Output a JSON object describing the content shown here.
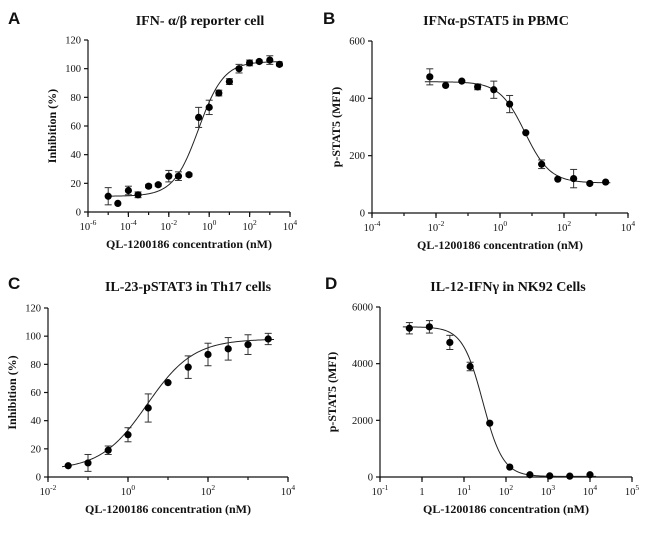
{
  "figure": {
    "background": "#ffffff",
    "marker_color": "#000000",
    "line_color": "#222222"
  },
  "chart_data": [
    {
      "id": "A",
      "letter": "A",
      "type": "scatter",
      "title": "IFN- α/β reporter cell",
      "xlabel": "QL-1200186 concentration (nM)",
      "ylabel": "Inhibition (%)",
      "x_scale": "log10",
      "xlim": [
        1e-06,
        10000.0
      ],
      "x_ticks": [
        1e-06,
        0.0001,
        0.01,
        1,
        100,
        10000
      ],
      "x_tick_labels": [
        {
          "base": "10",
          "exp": "-6"
        },
        {
          "base": "10",
          "exp": "-4"
        },
        {
          "base": "10",
          "exp": "-2"
        },
        {
          "base": "10",
          "exp": "0"
        },
        {
          "base": "10",
          "exp": "2"
        },
        {
          "base": "10",
          "exp": "4"
        }
      ],
      "ylim": [
        0,
        120
      ],
      "y_ticks": [
        0,
        20,
        40,
        60,
        80,
        100,
        120
      ],
      "points": [
        {
          "x": 1e-05,
          "y": 11,
          "err": 6
        },
        {
          "x": 3e-05,
          "y": 6,
          "err": 0
        },
        {
          "x": 0.0001,
          "y": 15,
          "err": 3
        },
        {
          "x": 0.0003,
          "y": 12,
          "err": 2
        },
        {
          "x": 0.001,
          "y": 18,
          "err": 1
        },
        {
          "x": 0.003,
          "y": 19,
          "err": 1
        },
        {
          "x": 0.01,
          "y": 25,
          "err": 4
        },
        {
          "x": 0.03,
          "y": 25,
          "err": 3
        },
        {
          "x": 0.1,
          "y": 26,
          "err": 1
        },
        {
          "x": 0.3,
          "y": 66,
          "err": 7
        },
        {
          "x": 1,
          "y": 73,
          "err": 5
        },
        {
          "x": 3,
          "y": 83,
          "err": 2
        },
        {
          "x": 10,
          "y": 91,
          "err": 2
        },
        {
          "x": 30,
          "y": 100,
          "err": 3
        },
        {
          "x": 100,
          "y": 104,
          "err": 2
        },
        {
          "x": 300,
          "y": 105,
          "err": 1
        },
        {
          "x": 1000,
          "y": 106,
          "err": 3
        },
        {
          "x": 3000,
          "y": 103,
          "err": 1
        }
      ],
      "fit": {
        "bottom": 11,
        "top": 105,
        "ec50": 0.3,
        "hill": 0.7
      }
    },
    {
      "id": "B",
      "letter": "B",
      "type": "scatter",
      "title": "IFNα-pSTAT5 in PBMC",
      "xlabel": "QL-1200186 concentration (nM)",
      "ylabel": "p-STAT5 (MFI)",
      "x_scale": "log10",
      "xlim": [
        0.0001,
        10000.0
      ],
      "x_ticks": [
        0.0001,
        0.01,
        1,
        100,
        10000
      ],
      "x_tick_labels": [
        {
          "base": "10",
          "exp": "-4"
        },
        {
          "base": "10",
          "exp": "-2"
        },
        {
          "base": "10",
          "exp": "0"
        },
        {
          "base": "10",
          "exp": "2"
        },
        {
          "base": "10",
          "exp": "4"
        }
      ],
      "ylim": [
        0,
        600
      ],
      "y_ticks": [
        0,
        200,
        400,
        600
      ],
      "points": [
        {
          "x": 0.0064,
          "y": 475,
          "err": 28
        },
        {
          "x": 0.02,
          "y": 445,
          "err": 0
        },
        {
          "x": 0.064,
          "y": 460,
          "err": 0
        },
        {
          "x": 0.2,
          "y": 440,
          "err": 10
        },
        {
          "x": 0.64,
          "y": 430,
          "err": 30
        },
        {
          "x": 2,
          "y": 380,
          "err": 30
        },
        {
          "x": 6.4,
          "y": 280,
          "err": 0
        },
        {
          "x": 20,
          "y": 170,
          "err": 15
        },
        {
          "x": 64,
          "y": 118,
          "err": 0
        },
        {
          "x": 200,
          "y": 120,
          "err": 32
        },
        {
          "x": 640,
          "y": 103,
          "err": 0
        },
        {
          "x": 2000,
          "y": 108,
          "err": 0
        }
      ],
      "fit": {
        "bottom": 105,
        "top": 458,
        "ec50": 6,
        "hill": -1.1
      }
    },
    {
      "id": "C",
      "letter": "C",
      "type": "scatter",
      "title": "IL-23-pSTAT3 in Th17 cells",
      "xlabel": "QL-1200186 concentration (nM)",
      "ylabel": "Inhibition (%)",
      "x_scale": "log10",
      "xlim": [
        0.01,
        10000
      ],
      "x_ticks": [
        0.01,
        1,
        100,
        10000
      ],
      "x_tick_labels": [
        {
          "base": "10",
          "exp": "-2"
        },
        {
          "base": "10",
          "exp": "0"
        },
        {
          "base": "10",
          "exp": "2"
        },
        {
          "base": "10",
          "exp": "4"
        }
      ],
      "ylim": [
        0,
        120
      ],
      "y_ticks": [
        0,
        20,
        40,
        60,
        80,
        100,
        120
      ],
      "points": [
        {
          "x": 0.032,
          "y": 8,
          "err": 0
        },
        {
          "x": 0.1,
          "y": 10,
          "err": 6
        },
        {
          "x": 0.32,
          "y": 19,
          "err": 3
        },
        {
          "x": 1,
          "y": 30,
          "err": 5
        },
        {
          "x": 3.2,
          "y": 49,
          "err": 10
        },
        {
          "x": 10,
          "y": 67,
          "err": 0
        },
        {
          "x": 32,
          "y": 78,
          "err": 8
        },
        {
          "x": 100,
          "y": 87,
          "err": 8
        },
        {
          "x": 320,
          "y": 91,
          "err": 8
        },
        {
          "x": 1000,
          "y": 94,
          "err": 7
        },
        {
          "x": 3200,
          "y": 98,
          "err": 4
        }
      ],
      "fit": {
        "bottom": 5,
        "top": 98,
        "ec50": 3,
        "hill": 0.75
      }
    },
    {
      "id": "D",
      "letter": "D",
      "type": "scatter",
      "title": "IL-12-IFNγ in NK92 Cells",
      "xlabel": "QL-1200186 concentration (nM)",
      "ylabel": "p-STAT5 (MFI)",
      "x_scale": "log10",
      "xlim": [
        0.1,
        100000
      ],
      "x_ticks": [
        0.1,
        1,
        10,
        100,
        1000,
        10000,
        100000
      ],
      "x_tick_labels": [
        {
          "base": "10",
          "exp": "-1"
        },
        {
          "base": "1",
          "exp": ""
        },
        {
          "base": "10",
          "exp": "1"
        },
        {
          "base": "10",
          "exp": "2"
        },
        {
          "base": "10",
          "exp": "3"
        },
        {
          "base": "10",
          "exp": "4"
        },
        {
          "base": "10",
          "exp": "5"
        }
      ],
      "ylim": [
        0,
        6000
      ],
      "y_ticks": [
        0,
        2000,
        4000,
        6000
      ],
      "points": [
        {
          "x": 0.5,
          "y": 5250,
          "err": 200
        },
        {
          "x": 1.5,
          "y": 5300,
          "err": 220
        },
        {
          "x": 4.6,
          "y": 4750,
          "err": 250
        },
        {
          "x": 14,
          "y": 3900,
          "err": 150
        },
        {
          "x": 41,
          "y": 1900,
          "err": 0
        },
        {
          "x": 123,
          "y": 350,
          "err": 0
        },
        {
          "x": 370,
          "y": 80,
          "err": 0
        },
        {
          "x": 1100,
          "y": 40,
          "err": 0
        },
        {
          "x": 3300,
          "y": 30,
          "err": 0
        },
        {
          "x": 10000,
          "y": 80,
          "err": 0
        }
      ],
      "fit": {
        "bottom": 20,
        "top": 5300,
        "ec50": 28,
        "hill": -1.8
      }
    }
  ]
}
